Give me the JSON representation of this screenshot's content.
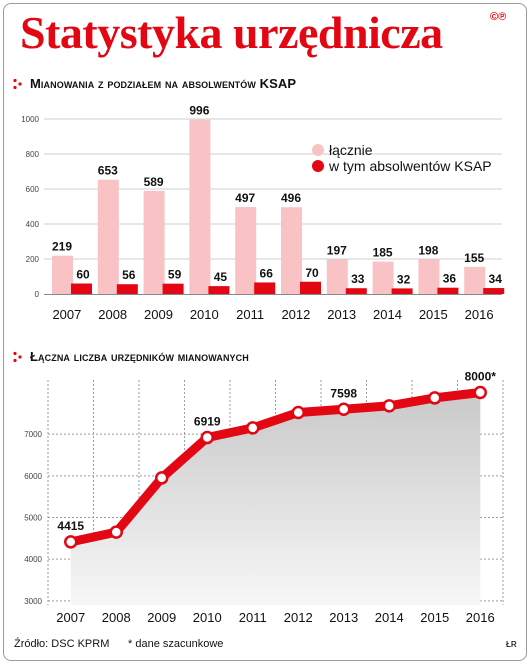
{
  "header": {
    "title": "Statystyka urzędnicza",
    "badge": "©℗"
  },
  "colors": {
    "accent": "#e30613",
    "light_bar": "#f9c3c6",
    "dark_bar": "#e30613",
    "line": "#e30613"
  },
  "chart_data": [
    {
      "type": "bar",
      "title": "Mianowania z podziałem na absolwentów KSAP",
      "categories": [
        "2007",
        "2008",
        "2009",
        "2010",
        "2011",
        "2012",
        "2013",
        "2014",
        "2015",
        "2016"
      ],
      "series": [
        {
          "name": "łącznie",
          "values": [
            219,
            653,
            589,
            996,
            497,
            496,
            197,
            185,
            198,
            155
          ]
        },
        {
          "name": "w tym absolwentów KSAP",
          "values": [
            60,
            56,
            59,
            45,
            66,
            70,
            33,
            32,
            36,
            34
          ]
        }
      ],
      "yticks": [
        "0",
        "200",
        "400",
        "600",
        "800",
        "1000"
      ],
      "ylim": [
        0,
        1000
      ],
      "legend": "top-right",
      "grid": true
    },
    {
      "type": "area",
      "title": "Łączna liczba urzędników mianowanych",
      "x": [
        "2007",
        "2008",
        "2009",
        "2010",
        "2011",
        "2012",
        "2013",
        "2014",
        "2015",
        "2016"
      ],
      "values": [
        4415,
        4650,
        5950,
        6919,
        7150,
        7520,
        7598,
        7680,
        7870,
        8000
      ],
      "point_labels": [
        "4415",
        "",
        "",
        "6919",
        "",
        "",
        "7598",
        "",
        "",
        "8000*"
      ],
      "yticks": [
        "3000",
        "4000",
        "5000",
        "6000",
        "7000"
      ],
      "ylim": [
        2900,
        8300
      ],
      "grid": true
    }
  ],
  "footer": {
    "source": "Źródło: DSC KPRM",
    "note": "* dane szacunkowe",
    "credit": "ŁR"
  }
}
